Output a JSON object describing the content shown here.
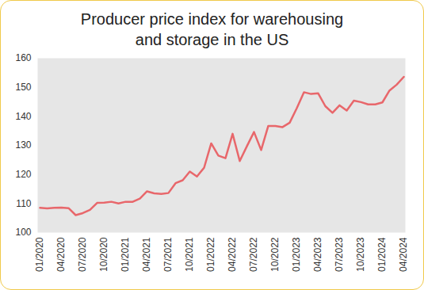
{
  "chart_data": {
    "type": "line",
    "title": "Producer price index for warehousing and storage in the US",
    "categories": [
      "01/2020",
      null,
      null,
      "04/2020",
      null,
      null,
      "07/2020",
      null,
      null,
      "10/2020",
      null,
      null,
      "01/2021",
      null,
      null,
      "04/2021",
      null,
      null,
      "07/2021",
      null,
      null,
      "10/2021",
      null,
      null,
      "01/2022",
      null,
      null,
      "04/2022",
      null,
      null,
      "07/2022",
      null,
      null,
      "10/2022",
      null,
      null,
      "01/2023",
      null,
      null,
      "04/2023",
      null,
      null,
      "07/2023",
      null,
      null,
      "10/2023",
      null,
      null,
      "01/2024",
      null,
      null,
      "04/2024"
    ],
    "values": [
      108.5,
      108.3,
      108.5,
      108.6,
      108.4,
      106.0,
      106.7,
      107.8,
      110.2,
      110.3,
      110.6,
      110.0,
      110.6,
      110.6,
      111.7,
      114.2,
      113.5,
      113.3,
      113.6,
      117.0,
      118.0,
      121.0,
      119.3,
      122.3,
      130.7,
      126.5,
      125.6,
      134.0,
      124.6,
      129.7,
      134.6,
      128.4,
      136.7,
      136.7,
      136.3,
      137.8,
      142.8,
      148.3,
      147.7,
      147.9,
      143.5,
      141.2,
      143.8,
      142.0,
      145.4,
      144.9,
      144.1,
      144.1,
      144.8,
      148.9,
      150.9,
      153.6
    ],
    "color": "#e8676b",
    "ylim": [
      100,
      160
    ],
    "yticks": [
      100,
      110,
      120,
      130,
      140,
      150,
      160
    ],
    "grid": false
  }
}
